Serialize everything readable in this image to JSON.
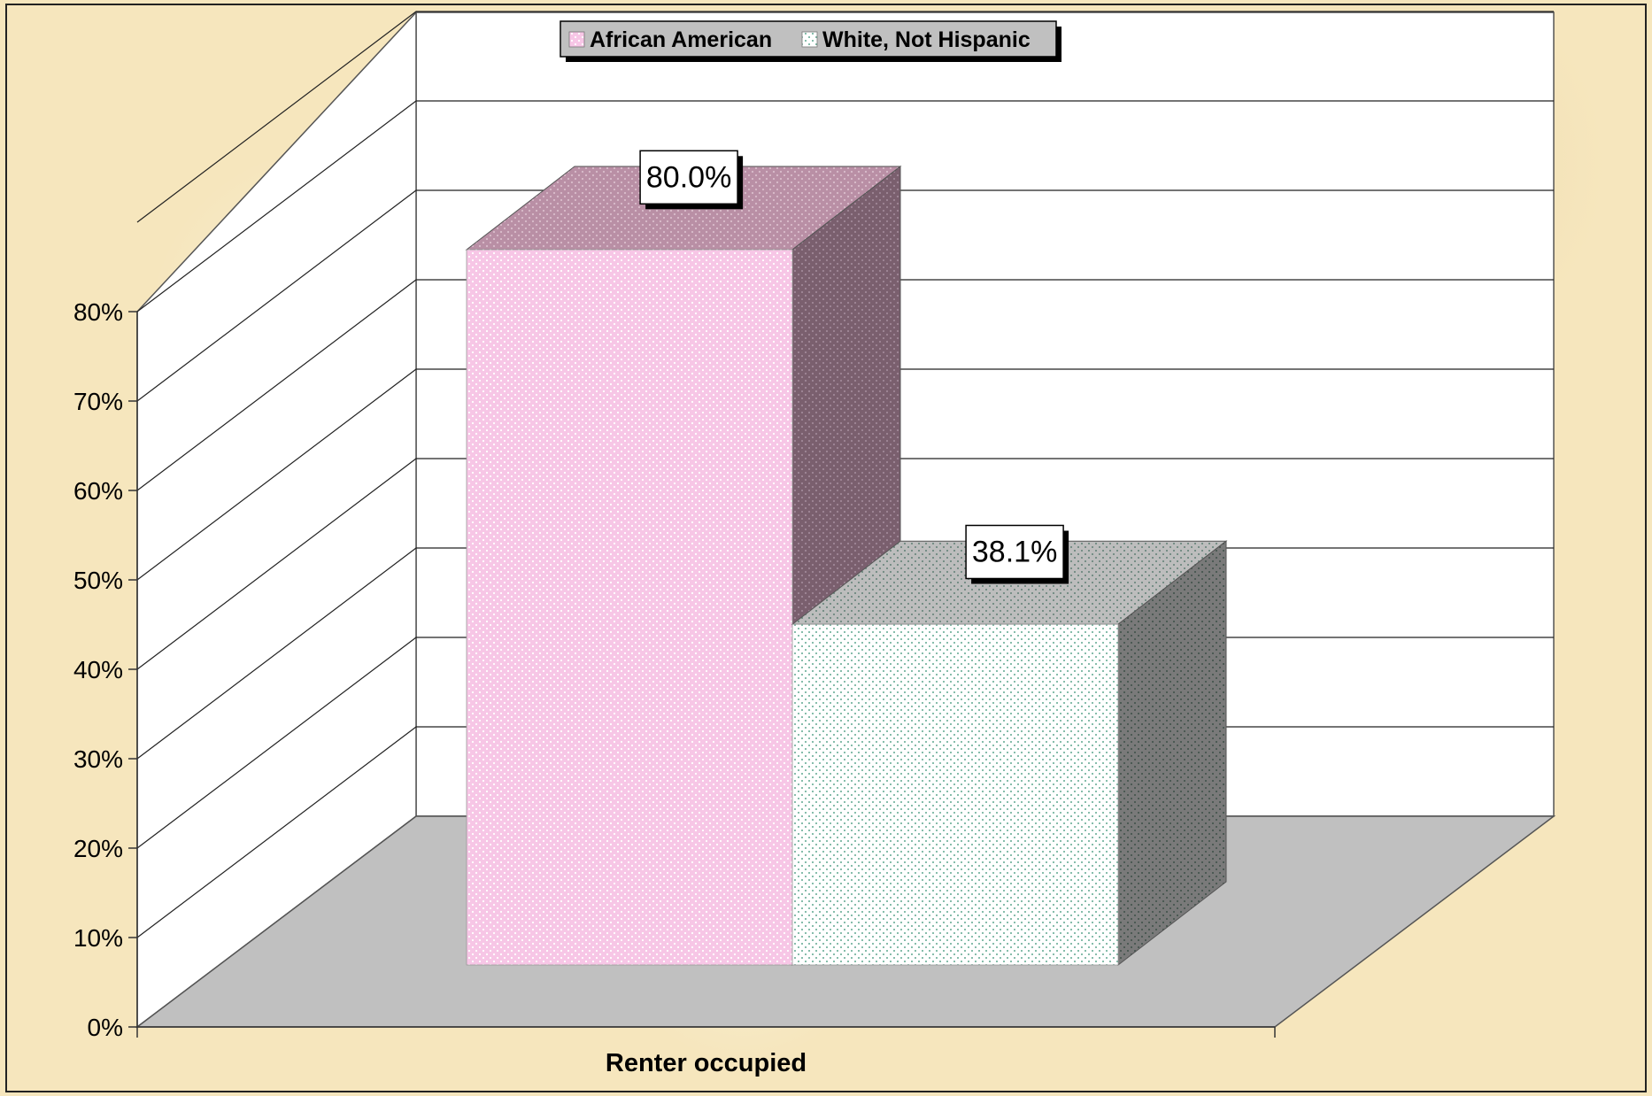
{
  "chart_data": {
    "type": "bar",
    "title": "",
    "categories": [
      "Renter occupied"
    ],
    "series": [
      {
        "name": "African American",
        "values": [
          80.0
        ]
      },
      {
        "name": "White, Not Hispanic",
        "values": [
          38.1
        ]
      }
    ],
    "data_labels": [
      "80.0%",
      "38.1%"
    ],
    "ylim": [
      0,
      80
    ],
    "yticks": [
      "0%",
      "10%",
      "20%",
      "30%",
      "40%",
      "50%",
      "60%",
      "70%",
      "80%"
    ],
    "xlabel": "",
    "ylabel": "",
    "legend": "top-center",
    "grid": true,
    "style": "3d-column",
    "colors": {
      "african_american_front": "#f7c6e6",
      "african_american_top": "#b98fa5",
      "african_american_side": "#7a5f6e",
      "white_front": "#ffffff",
      "white_top": "#bdbdbd",
      "white_side": "#7a7a7a",
      "floor": "#c0c0c0",
      "wall": "#ffffff"
    }
  }
}
